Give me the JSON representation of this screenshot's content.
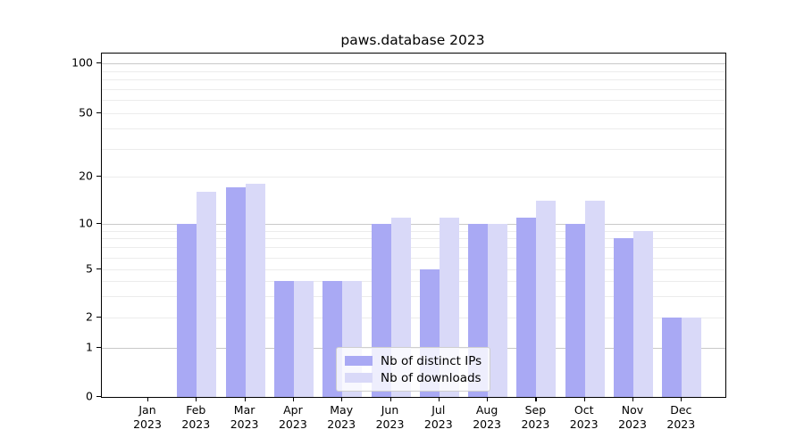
{
  "title": "paws.database 2023",
  "chart_data": {
    "type": "bar",
    "title": "paws.database 2023",
    "categories": [
      "Jan 2023",
      "Feb 2023",
      "Mar 2023",
      "Apr 2023",
      "May 2023",
      "Jun 2023",
      "Jul 2023",
      "Aug 2023",
      "Sep 2023",
      "Oct 2023",
      "Nov 2023",
      "Dec 2023"
    ],
    "series": [
      {
        "name": "Nb of distinct IPs",
        "color": "#a9a9f4",
        "values": [
          0,
          10,
          17,
          4,
          4,
          10,
          5,
          10,
          11,
          10,
          8,
          2
        ]
      },
      {
        "name": "Nb of downloads",
        "color": "#d9d9f8",
        "values": [
          0,
          16,
          18,
          4,
          4,
          11,
          11,
          10,
          14,
          14,
          9,
          2
        ]
      }
    ],
    "yscale": "symlog",
    "ylim": [
      0,
      100
    ],
    "ytick_values": [
      0,
      1,
      2,
      5,
      10,
      20,
      50,
      100
    ],
    "major_gridlines": [
      1,
      10,
      100
    ],
    "minor_gridlines": [
      3,
      4,
      6,
      7,
      8,
      9,
      30,
      40,
      60,
      70,
      80,
      90
    ],
    "grid": true,
    "legend_position": "lower center",
    "background_color": "#ffffff",
    "axis_color": "#000000"
  }
}
